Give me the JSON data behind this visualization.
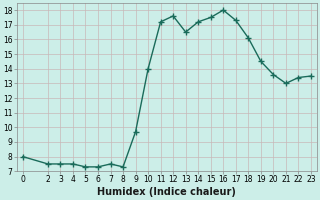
{
  "x": [
    0,
    2,
    3,
    4,
    5,
    6,
    7,
    8,
    9,
    10,
    11,
    12,
    13,
    14,
    15,
    16,
    17,
    18,
    19,
    20,
    21,
    22,
    23
  ],
  "y": [
    8.0,
    7.5,
    7.5,
    7.5,
    7.3,
    7.3,
    7.5,
    7.3,
    9.7,
    14.0,
    17.2,
    17.6,
    16.5,
    17.2,
    17.5,
    18.0,
    17.3,
    16.1,
    14.5,
    13.6,
    13.0,
    13.4,
    13.5
  ],
  "line_color": "#1a6b5a",
  "marker": "+",
  "marker_size": 4,
  "background_color": "#cceee8",
  "grid_color": "#c8b8b8",
  "xlabel": "Humidex (Indice chaleur)",
  "ylim": [
    7,
    18.5
  ],
  "xlim": [
    -0.5,
    23.5
  ],
  "xticks": [
    0,
    2,
    3,
    4,
    5,
    6,
    7,
    8,
    9,
    10,
    11,
    12,
    13,
    14,
    15,
    16,
    17,
    18,
    19,
    20,
    21,
    22,
    23
  ],
  "yticks": [
    7,
    8,
    9,
    10,
    11,
    12,
    13,
    14,
    15,
    16,
    17,
    18
  ],
  "tick_fontsize": 5.5,
  "label_fontsize": 7,
  "line_width": 1.0
}
